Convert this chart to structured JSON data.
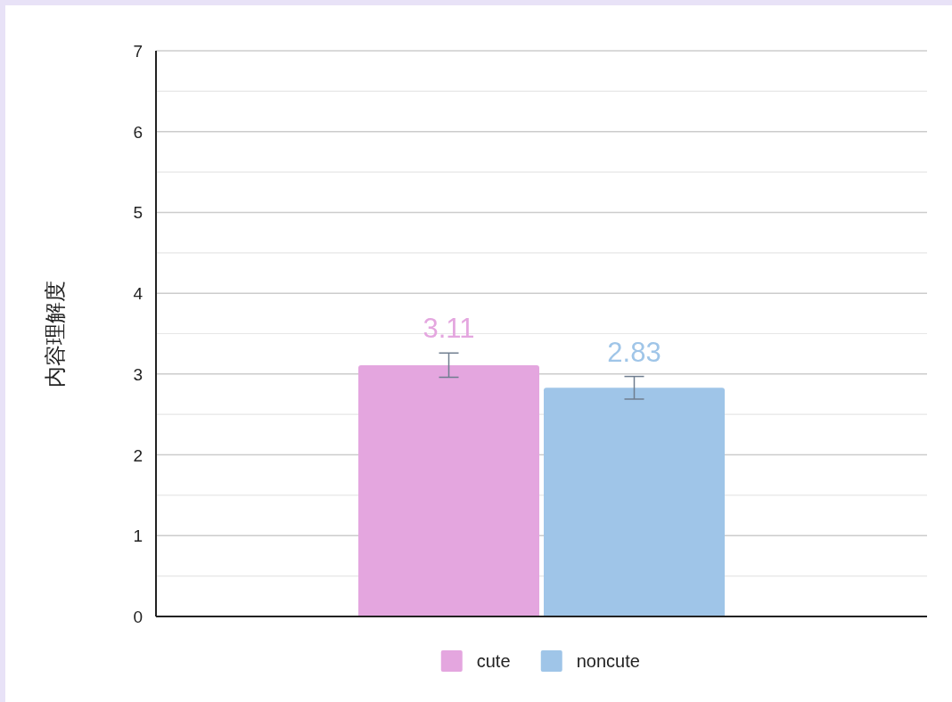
{
  "chart_data": {
    "type": "bar",
    "ylabel": "内容理解度",
    "categories": [
      null
    ],
    "series": [
      {
        "name": "cute",
        "color": "#e4a6df",
        "values": [
          3.11
        ],
        "errors": [
          0.15
        ]
      },
      {
        "name": "noncute",
        "color": "#9fc5e8",
        "values": [
          2.83
        ],
        "errors": [
          0.14
        ]
      }
    ],
    "ylim": [
      0,
      7
    ],
    "yticks": [
      0,
      {
        "value": 0.5,
        "label": null
      },
      1,
      {
        "value": 1.5,
        "label": null
      },
      2,
      {
        "value": 2.5,
        "label": null
      },
      3,
      {
        "value": 3.5,
        "label": null
      },
      4,
      {
        "value": 4.5,
        "label": null
      },
      5,
      {
        "value": 5.5,
        "label": null
      },
      6,
      {
        "value": 6.5,
        "label": null
      },
      7
    ],
    "grid": true,
    "legend": "bottom",
    "data_labels": true
  }
}
